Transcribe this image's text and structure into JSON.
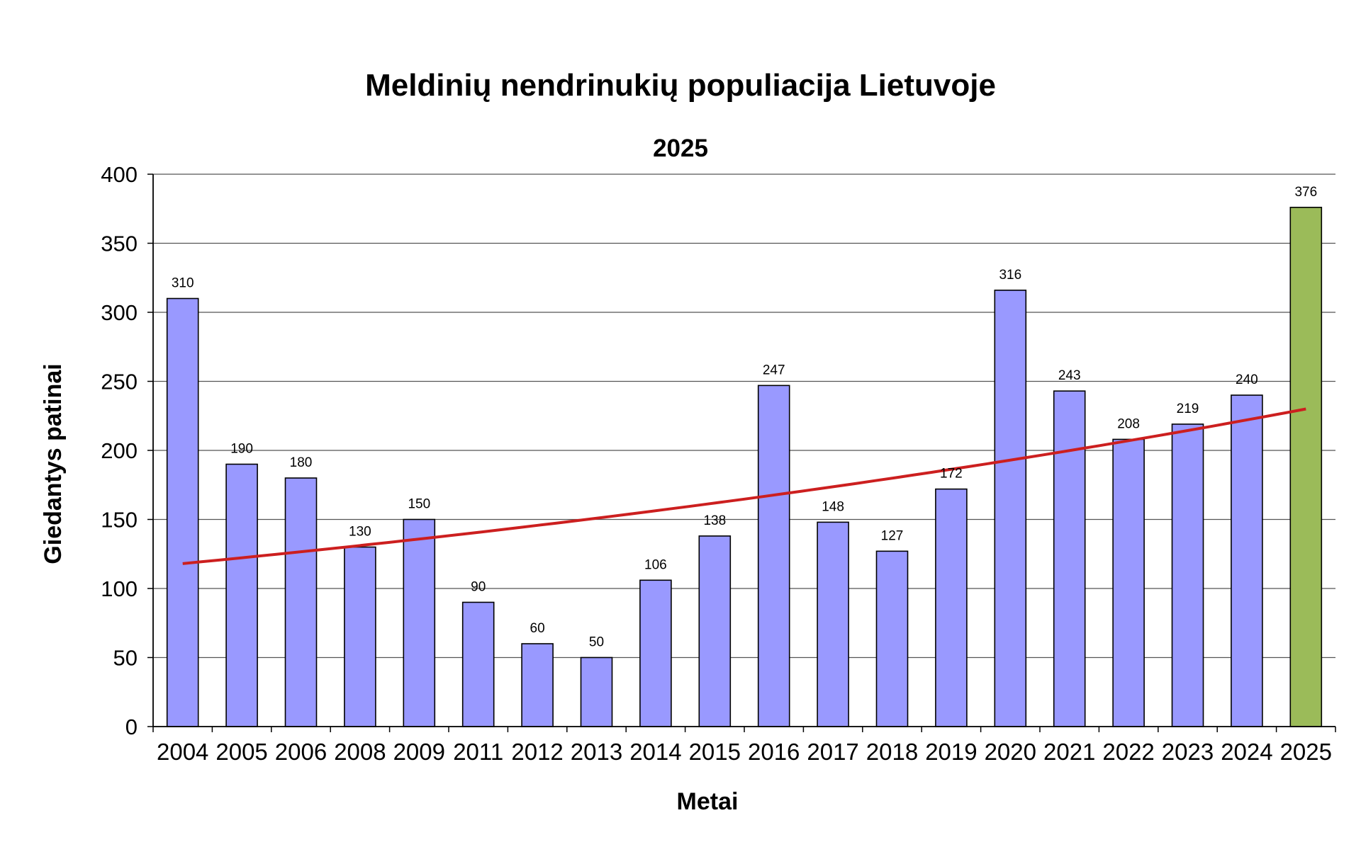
{
  "page": {
    "title": "Meldinių nendrinukių populiacija Lietuvoje"
  },
  "chart_data": {
    "type": "bar",
    "title": "Meldinių nendrinukių populiacija Lietuvoje",
    "subtitle": "2025",
    "xlabel": "Metai",
    "ylabel": "Giedantys patinai",
    "ylim": [
      0,
      400
    ],
    "yticks": [
      0,
      50,
      100,
      150,
      200,
      250,
      300,
      350,
      400
    ],
    "grid": true,
    "categories": [
      "2004",
      "2005",
      "2006",
      "2008",
      "2009",
      "2011",
      "2012",
      "2013",
      "2014",
      "2015",
      "2016",
      "2017",
      "2018",
      "2019",
      "2020",
      "2021",
      "2022",
      "2023",
      "2024",
      "2025"
    ],
    "series": [
      {
        "values": [
          310,
          190,
          180,
          130,
          150,
          90,
          60,
          50,
          106,
          138,
          247,
          148,
          127,
          172,
          316,
          243,
          208,
          219,
          240,
          376
        ]
      }
    ],
    "data_labels": [
      "310",
      "190",
      "180",
      "130",
      "150",
      "90",
      "60",
      "50",
      "106",
      "138",
      "247",
      "148",
      "127",
      "172",
      "316",
      "243",
      "208",
      "219",
      "240",
      "376"
    ],
    "highlight_category": "2025",
    "trendline": {
      "type": "exponential",
      "start": 118,
      "end": 230
    },
    "colors": {
      "bar": "#9999ff",
      "highlight_bar": "#9bbb59",
      "trend": "#cc1f1f",
      "grid": "#555555"
    }
  }
}
